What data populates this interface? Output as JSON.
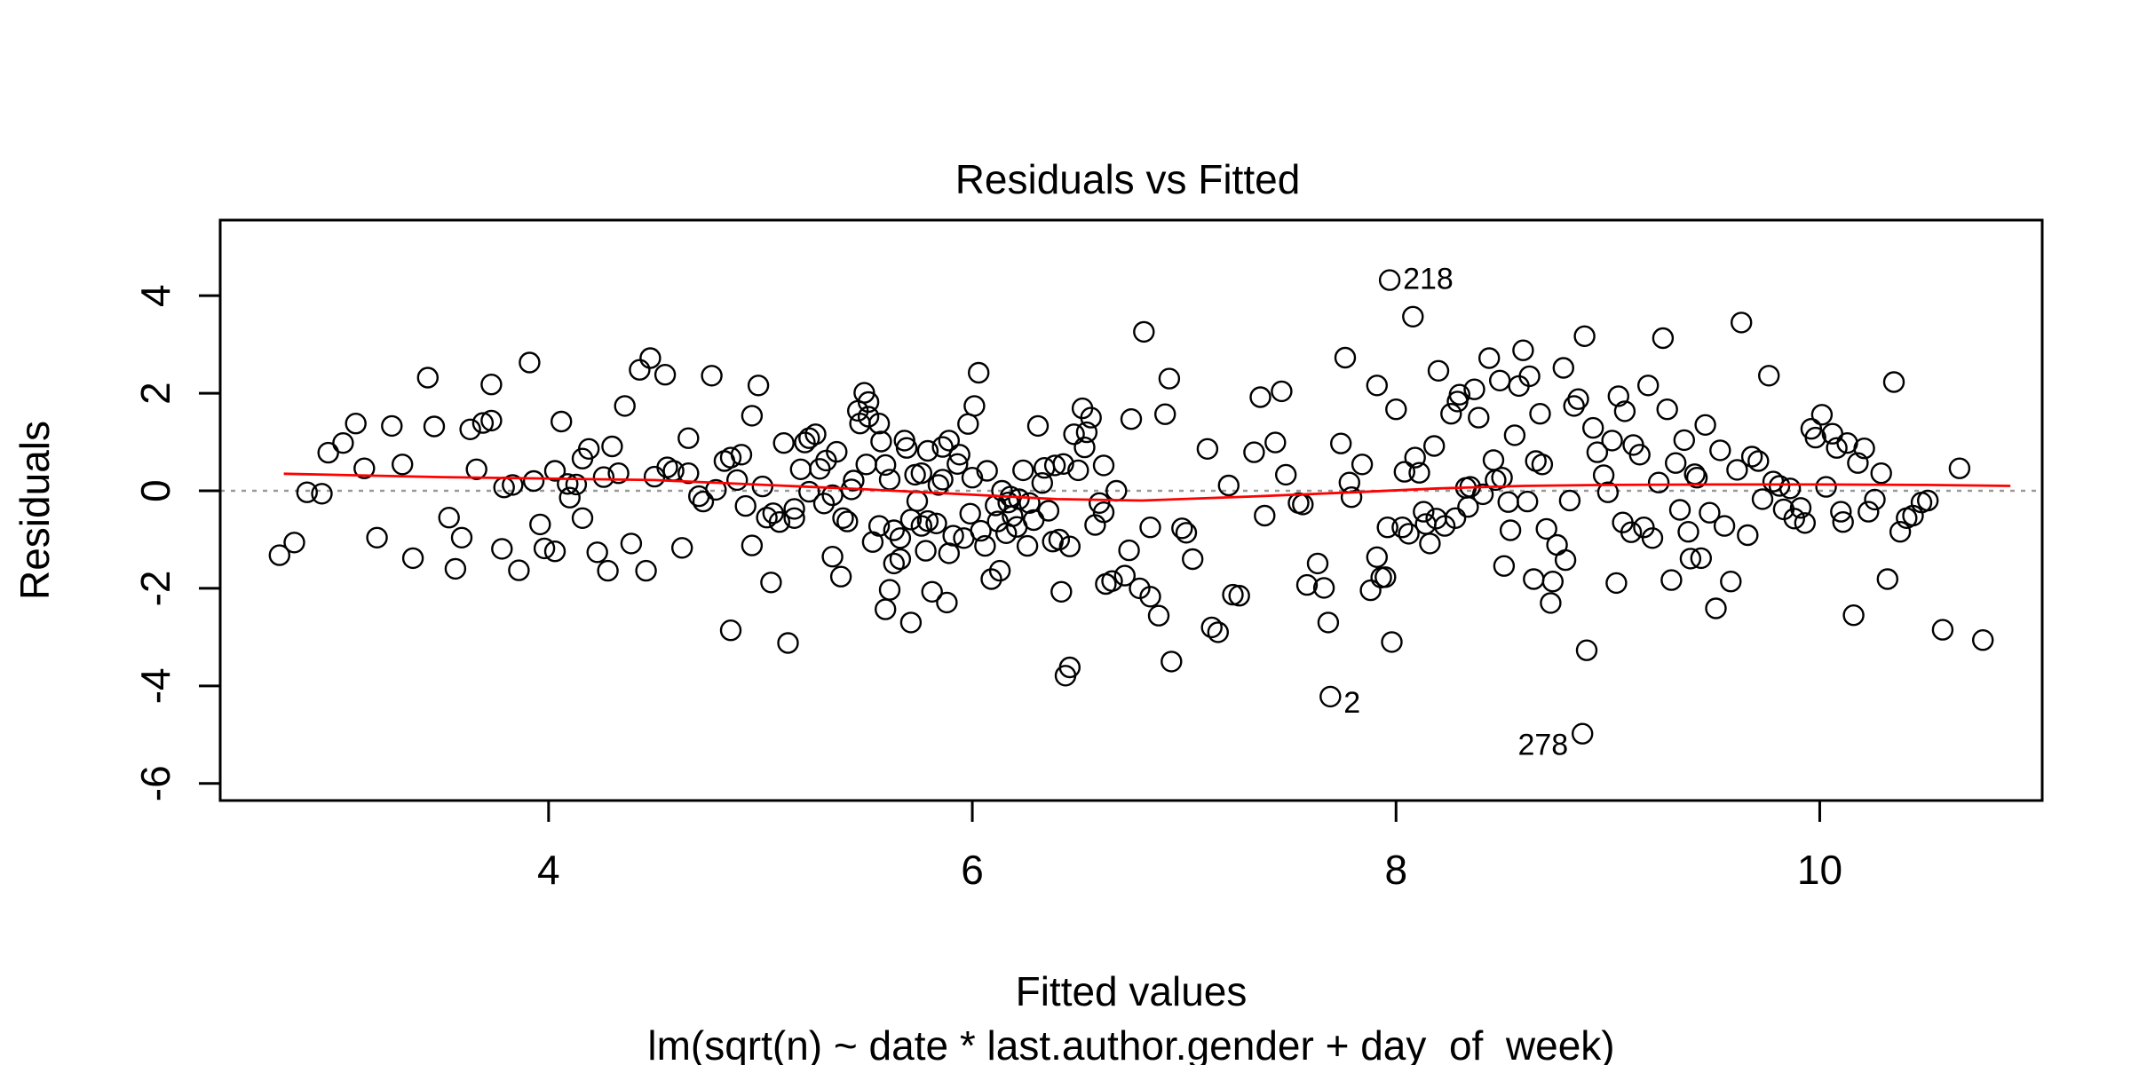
{
  "chart_data": {
    "type": "scatter",
    "title": "Residuals vs Fitted",
    "xlabel": "Fitted values",
    "subtitle": "lm(sqrt(n) ~ date * last.author.gender + day_of_week)",
    "ylabel": "Residuals",
    "xlim": [
      2.45,
      11.05
    ],
    "ylim": [
      -6.35,
      5.55
    ],
    "xticks": [
      4,
      6,
      8,
      10
    ],
    "yticks": [
      -6,
      -4,
      -2,
      0,
      2,
      4
    ],
    "reference_line": {
      "y": 0,
      "style": "dotted",
      "color": "#999999"
    },
    "smooth_color": "#ff0000",
    "point_color": "#000000",
    "smooth": [
      [
        2.75,
        0.35
      ],
      [
        3.5,
        0.28
      ],
      [
        4.5,
        0.22
      ],
      [
        5.5,
        0.03
      ],
      [
        6.0,
        -0.08
      ],
      [
        6.4,
        -0.17
      ],
      [
        6.8,
        -0.2
      ],
      [
        7.3,
        -0.12
      ],
      [
        7.8,
        -0.03
      ],
      [
        8.2,
        0.05
      ],
      [
        8.6,
        0.1
      ],
      [
        9.0,
        0.12
      ],
      [
        9.5,
        0.13
      ],
      [
        10.0,
        0.13
      ],
      [
        10.5,
        0.12
      ],
      [
        10.9,
        0.1
      ]
    ],
    "labeled_points": [
      {
        "label": "218",
        "x": 7.97,
        "y": 4.32
      },
      {
        "label": "2",
        "x": 7.69,
        "y": -4.22
      },
      {
        "label": "278",
        "x": 8.88,
        "y": -4.98
      }
    ],
    "points": [
      [
        2.73,
        -1.32
      ],
      [
        2.8,
        -1.06
      ],
      [
        2.86,
        -0.03
      ],
      [
        2.93,
        -0.06
      ],
      [
        2.96,
        0.78
      ],
      [
        3.03,
        0.98
      ],
      [
        3.09,
        1.38
      ],
      [
        3.13,
        0.46
      ],
      [
        3.19,
        -0.96
      ],
      [
        3.26,
        1.33
      ],
      [
        3.31,
        0.54
      ],
      [
        3.36,
        -1.38
      ],
      [
        3.43,
        2.32
      ],
      [
        3.46,
        1.32
      ],
      [
        3.53,
        -0.55
      ],
      [
        3.56,
        -1.6
      ],
      [
        3.59,
        -0.96
      ],
      [
        3.63,
        1.26
      ],
      [
        3.66,
        0.44
      ],
      [
        3.69,
        1.39
      ],
      [
        3.73,
        1.44
      ],
      [
        3.73,
        2.18
      ],
      [
        3.78,
        -1.19
      ],
      [
        3.79,
        0.07
      ],
      [
        3.83,
        0.12
      ],
      [
        3.86,
        -1.63
      ],
      [
        3.91,
        2.63
      ],
      [
        3.93,
        0.2
      ],
      [
        3.96,
        -0.69
      ],
      [
        3.98,
        -1.18
      ],
      [
        4.03,
        -1.24
      ],
      [
        4.03,
        0.41
      ],
      [
        4.06,
        1.42
      ],
      [
        4.09,
        0.14
      ],
      [
        4.1,
        -0.14
      ],
      [
        4.13,
        0.13
      ],
      [
        4.16,
        -0.56
      ],
      [
        4.16,
        0.66
      ],
      [
        4.19,
        0.86
      ],
      [
        4.23,
        -1.26
      ],
      [
        4.26,
        0.28
      ],
      [
        4.28,
        -1.64
      ],
      [
        4.3,
        0.91
      ],
      [
        4.33,
        0.36
      ],
      [
        4.36,
        1.74
      ],
      [
        4.39,
        -1.08
      ],
      [
        4.43,
        2.48
      ],
      [
        4.46,
        -1.64
      ],
      [
        4.48,
        2.72
      ],
      [
        4.5,
        0.29
      ],
      [
        4.55,
        2.38
      ],
      [
        4.56,
        0.48
      ],
      [
        4.59,
        0.41
      ],
      [
        4.63,
        -1.17
      ],
      [
        4.66,
        1.08
      ],
      [
        4.66,
        0.36
      ],
      [
        4.71,
        -0.11
      ],
      [
        4.73,
        -0.22
      ],
      [
        4.77,
        2.36
      ],
      [
        4.79,
        0.02
      ],
      [
        4.83,
        0.61
      ],
      [
        4.86,
        -2.86
      ],
      [
        4.86,
        0.68
      ],
      [
        4.89,
        0.22
      ],
      [
        4.91,
        0.74
      ],
      [
        4.93,
        -0.31
      ],
      [
        4.96,
        1.54
      ],
      [
        4.96,
        -1.12
      ],
      [
        4.99,
        2.16
      ],
      [
        5.01,
        0.09
      ],
      [
        5.03,
        -0.55
      ],
      [
        5.05,
        -1.88
      ],
      [
        5.06,
        -0.46
      ],
      [
        5.09,
        -0.64
      ],
      [
        5.11,
        0.98
      ],
      [
        5.13,
        -3.12
      ],
      [
        5.16,
        -0.37
      ],
      [
        5.16,
        -0.56
      ],
      [
        5.19,
        0.44
      ],
      [
        5.21,
        0.99
      ],
      [
        5.23,
        1.08
      ],
      [
        5.23,
        -0.02
      ],
      [
        5.26,
        1.16
      ],
      [
        5.28,
        0.45
      ],
      [
        5.3,
        -0.26
      ],
      [
        5.31,
        0.62
      ],
      [
        5.34,
        -0.09
      ],
      [
        5.34,
        -1.35
      ],
      [
        5.36,
        0.8
      ],
      [
        5.38,
        -1.76
      ],
      [
        5.39,
        -0.56
      ],
      [
        5.41,
        -0.63
      ],
      [
        5.43,
        0.03
      ],
      [
        5.44,
        0.21
      ],
      [
        5.46,
        1.64
      ],
      [
        5.47,
        1.38
      ],
      [
        5.49,
        2.01
      ],
      [
        5.5,
        0.54
      ],
      [
        5.51,
        1.52
      ],
      [
        5.51,
        1.82
      ],
      [
        5.53,
        -1.05
      ],
      [
        5.56,
        -0.72
      ],
      [
        5.56,
        1.38
      ],
      [
        5.57,
        1.01
      ],
      [
        5.59,
        0.53
      ],
      [
        5.59,
        -2.43
      ],
      [
        5.61,
        0.23
      ],
      [
        5.61,
        -2.03
      ],
      [
        5.63,
        -1.49
      ],
      [
        5.63,
        -0.81
      ],
      [
        5.66,
        -1.4
      ],
      [
        5.66,
        -0.97
      ],
      [
        5.68,
        1.03
      ],
      [
        5.69,
        0.88
      ],
      [
        5.71,
        -0.59
      ],
      [
        5.71,
        -2.7
      ],
      [
        5.73,
        0.33
      ],
      [
        5.74,
        -0.21
      ],
      [
        5.76,
        0.36
      ],
      [
        5.76,
        -0.72
      ],
      [
        5.78,
        -1.23
      ],
      [
        5.79,
        -0.62
      ],
      [
        5.79,
        0.82
      ],
      [
        5.81,
        -2.07
      ],
      [
        5.83,
        -0.67
      ],
      [
        5.84,
        0.12
      ],
      [
        5.86,
        0.23
      ],
      [
        5.86,
        0.9
      ],
      [
        5.88,
        -2.29
      ],
      [
        5.89,
        1.03
      ],
      [
        5.89,
        -1.28
      ],
      [
        5.91,
        -0.92
      ],
      [
        5.93,
        0.55
      ],
      [
        5.94,
        0.74
      ],
      [
        5.96,
        -0.97
      ],
      [
        5.98,
        1.37
      ],
      [
        5.99,
        -0.47
      ],
      [
        6.0,
        0.27
      ],
      [
        6.01,
        1.74
      ],
      [
        6.03,
        2.42
      ],
      [
        6.04,
        -0.82
      ],
      [
        6.06,
        -1.13
      ],
      [
        6.07,
        0.41
      ],
      [
        6.09,
        -1.81
      ],
      [
        6.11,
        -0.3
      ],
      [
        6.12,
        -0.63
      ],
      [
        6.13,
        -1.64
      ],
      [
        6.14,
        0.0
      ],
      [
        6.16,
        -0.87
      ],
      [
        6.17,
        -0.24
      ],
      [
        6.18,
        -0.12
      ],
      [
        6.19,
        -0.52
      ],
      [
        6.21,
        -0.74
      ],
      [
        6.22,
        -0.17
      ],
      [
        6.24,
        0.42
      ],
      [
        6.26,
        -1.13
      ],
      [
        6.27,
        -0.25
      ],
      [
        6.29,
        -0.6
      ],
      [
        6.31,
        1.33
      ],
      [
        6.33,
        0.16
      ],
      [
        6.34,
        0.47
      ],
      [
        6.36,
        -0.41
      ],
      [
        6.38,
        -1.04
      ],
      [
        6.39,
        0.52
      ],
      [
        6.41,
        -1.0
      ],
      [
        6.42,
        -2.07
      ],
      [
        6.43,
        0.55
      ],
      [
        6.44,
        -3.79
      ],
      [
        6.46,
        -1.14
      ],
      [
        6.46,
        -3.62
      ],
      [
        6.48,
        1.16
      ],
      [
        6.5,
        0.42
      ],
      [
        6.52,
        1.69
      ],
      [
        6.53,
        0.89
      ],
      [
        6.54,
        1.2
      ],
      [
        6.56,
        1.5
      ],
      [
        6.58,
        -0.7
      ],
      [
        6.6,
        -0.25
      ],
      [
        6.62,
        -0.44
      ],
      [
        6.62,
        0.52
      ],
      [
        6.63,
        -1.91
      ],
      [
        6.66,
        -1.85
      ],
      [
        6.68,
        0.0
      ],
      [
        6.72,
        -1.74
      ],
      [
        6.74,
        -1.22
      ],
      [
        6.75,
        1.47
      ],
      [
        6.79,
        -2.0
      ],
      [
        6.81,
        3.26
      ],
      [
        6.84,
        -0.75
      ],
      [
        6.84,
        -2.17
      ],
      [
        6.88,
        -2.56
      ],
      [
        6.91,
        1.57
      ],
      [
        6.93,
        2.3
      ],
      [
        6.94,
        -3.5
      ],
      [
        6.99,
        -0.77
      ],
      [
        7.01,
        -0.86
      ],
      [
        7.04,
        -1.4
      ],
      [
        7.11,
        0.86
      ],
      [
        7.13,
        -2.8
      ],
      [
        7.16,
        -2.9
      ],
      [
        7.21,
        0.11
      ],
      [
        7.23,
        -2.13
      ],
      [
        7.26,
        -2.15
      ],
      [
        7.33,
        0.79
      ],
      [
        7.36,
        1.92
      ],
      [
        7.38,
        -0.51
      ],
      [
        7.43,
        0.99
      ],
      [
        7.46,
        2.04
      ],
      [
        7.48,
        0.33
      ],
      [
        7.54,
        -0.25
      ],
      [
        7.56,
        -0.28
      ],
      [
        7.58,
        -1.93
      ],
      [
        7.63,
        -1.49
      ],
      [
        7.66,
        -1.99
      ],
      [
        7.68,
        -2.7
      ],
      [
        7.74,
        0.97
      ],
      [
        7.76,
        2.73
      ],
      [
        7.78,
        0.17
      ],
      [
        7.79,
        -0.13
      ],
      [
        7.84,
        0.54
      ],
      [
        7.88,
        -2.04
      ],
      [
        7.91,
        -1.36
      ],
      [
        7.91,
        2.16
      ],
      [
        7.93,
        -1.78
      ],
      [
        7.95,
        -1.77
      ],
      [
        7.96,
        -0.75
      ],
      [
        7.98,
        -3.1
      ],
      [
        8.0,
        1.67
      ],
      [
        8.03,
        -0.75
      ],
      [
        8.04,
        0.39
      ],
      [
        8.06,
        -0.88
      ],
      [
        8.08,
        3.57
      ],
      [
        8.09,
        0.68
      ],
      [
        8.11,
        0.37
      ],
      [
        8.13,
        -0.43
      ],
      [
        8.14,
        -0.68
      ],
      [
        8.16,
        -1.08
      ],
      [
        8.18,
        0.92
      ],
      [
        8.19,
        -0.57
      ],
      [
        8.2,
        2.46
      ],
      [
        8.23,
        -0.72
      ],
      [
        8.26,
        1.58
      ],
      [
        8.28,
        -0.56
      ],
      [
        8.29,
        1.83
      ],
      [
        8.3,
        1.97
      ],
      [
        8.33,
        0.06
      ],
      [
        8.34,
        -0.33
      ],
      [
        8.35,
        0.08
      ],
      [
        8.37,
        2.08
      ],
      [
        8.39,
        1.5
      ],
      [
        8.41,
        -0.07
      ],
      [
        8.44,
        2.72
      ],
      [
        8.46,
        0.63
      ],
      [
        8.47,
        0.22
      ],
      [
        8.49,
        2.26
      ],
      [
        8.5,
        0.27
      ],
      [
        8.51,
        -1.54
      ],
      [
        8.53,
        -0.23
      ],
      [
        8.54,
        -0.81
      ],
      [
        8.56,
        1.14
      ],
      [
        8.58,
        2.15
      ],
      [
        8.6,
        2.88
      ],
      [
        8.62,
        -0.22
      ],
      [
        8.63,
        2.35
      ],
      [
        8.65,
        -1.81
      ],
      [
        8.66,
        0.61
      ],
      [
        8.68,
        1.58
      ],
      [
        8.69,
        0.54
      ],
      [
        8.71,
        -0.78
      ],
      [
        8.73,
        -2.3
      ],
      [
        8.74,
        -1.86
      ],
      [
        8.76,
        -1.11
      ],
      [
        8.79,
        2.52
      ],
      [
        8.8,
        -1.42
      ],
      [
        8.82,
        -0.2
      ],
      [
        8.84,
        1.74
      ],
      [
        8.86,
        1.88
      ],
      [
        8.89,
        3.17
      ],
      [
        8.9,
        -3.27
      ],
      [
        8.93,
        1.29
      ],
      [
        8.95,
        0.79
      ],
      [
        8.98,
        0.32
      ],
      [
        9.0,
        -0.03
      ],
      [
        9.02,
        1.03
      ],
      [
        9.04,
        -1.89
      ],
      [
        9.05,
        1.94
      ],
      [
        9.07,
        -0.65
      ],
      [
        9.08,
        1.63
      ],
      [
        9.11,
        -0.85
      ],
      [
        9.12,
        0.94
      ],
      [
        9.15,
        0.74
      ],
      [
        9.17,
        -0.75
      ],
      [
        9.19,
        2.16
      ],
      [
        9.21,
        -0.97
      ],
      [
        9.24,
        0.17
      ],
      [
        9.26,
        3.13
      ],
      [
        9.28,
        1.67
      ],
      [
        9.3,
        -1.83
      ],
      [
        9.32,
        0.57
      ],
      [
        9.34,
        -0.39
      ],
      [
        9.36,
        1.04
      ],
      [
        9.38,
        -0.84
      ],
      [
        9.39,
        -1.39
      ],
      [
        9.41,
        0.34
      ],
      [
        9.42,
        0.27
      ],
      [
        9.44,
        -1.38
      ],
      [
        9.46,
        1.35
      ],
      [
        9.48,
        -0.45
      ],
      [
        9.51,
        -2.41
      ],
      [
        9.53,
        0.83
      ],
      [
        9.55,
        -0.72
      ],
      [
        9.58,
        -1.86
      ],
      [
        9.61,
        0.43
      ],
      [
        9.63,
        3.45
      ],
      [
        9.66,
        -0.91
      ],
      [
        9.68,
        0.7
      ],
      [
        9.71,
        0.61
      ],
      [
        9.73,
        -0.17
      ],
      [
        9.76,
        2.36
      ],
      [
        9.78,
        0.19
      ],
      [
        9.81,
        0.1
      ],
      [
        9.83,
        -0.38
      ],
      [
        9.86,
        0.05
      ],
      [
        9.88,
        -0.57
      ],
      [
        9.91,
        -0.35
      ],
      [
        9.93,
        -0.66
      ],
      [
        9.96,
        1.27
      ],
      [
        9.98,
        1.09
      ],
      [
        10.01,
        1.56
      ],
      [
        10.03,
        0.08
      ],
      [
        10.06,
        1.17
      ],
      [
        10.08,
        0.88
      ],
      [
        10.1,
        -0.43
      ],
      [
        10.11,
        -0.64
      ],
      [
        10.13,
        0.98
      ],
      [
        10.16,
        -2.55
      ],
      [
        10.18,
        0.57
      ],
      [
        10.21,
        0.87
      ],
      [
        10.23,
        -0.43
      ],
      [
        10.26,
        -0.18
      ],
      [
        10.29,
        0.36
      ],
      [
        10.32,
        -1.81
      ],
      [
        10.35,
        2.23
      ],
      [
        10.38,
        -0.84
      ],
      [
        10.41,
        -0.56
      ],
      [
        10.44,
        -0.51
      ],
      [
        10.48,
        -0.24
      ],
      [
        10.51,
        -0.2
      ],
      [
        10.58,
        -2.85
      ],
      [
        10.66,
        0.46
      ],
      [
        10.77,
        -3.06
      ]
    ]
  }
}
